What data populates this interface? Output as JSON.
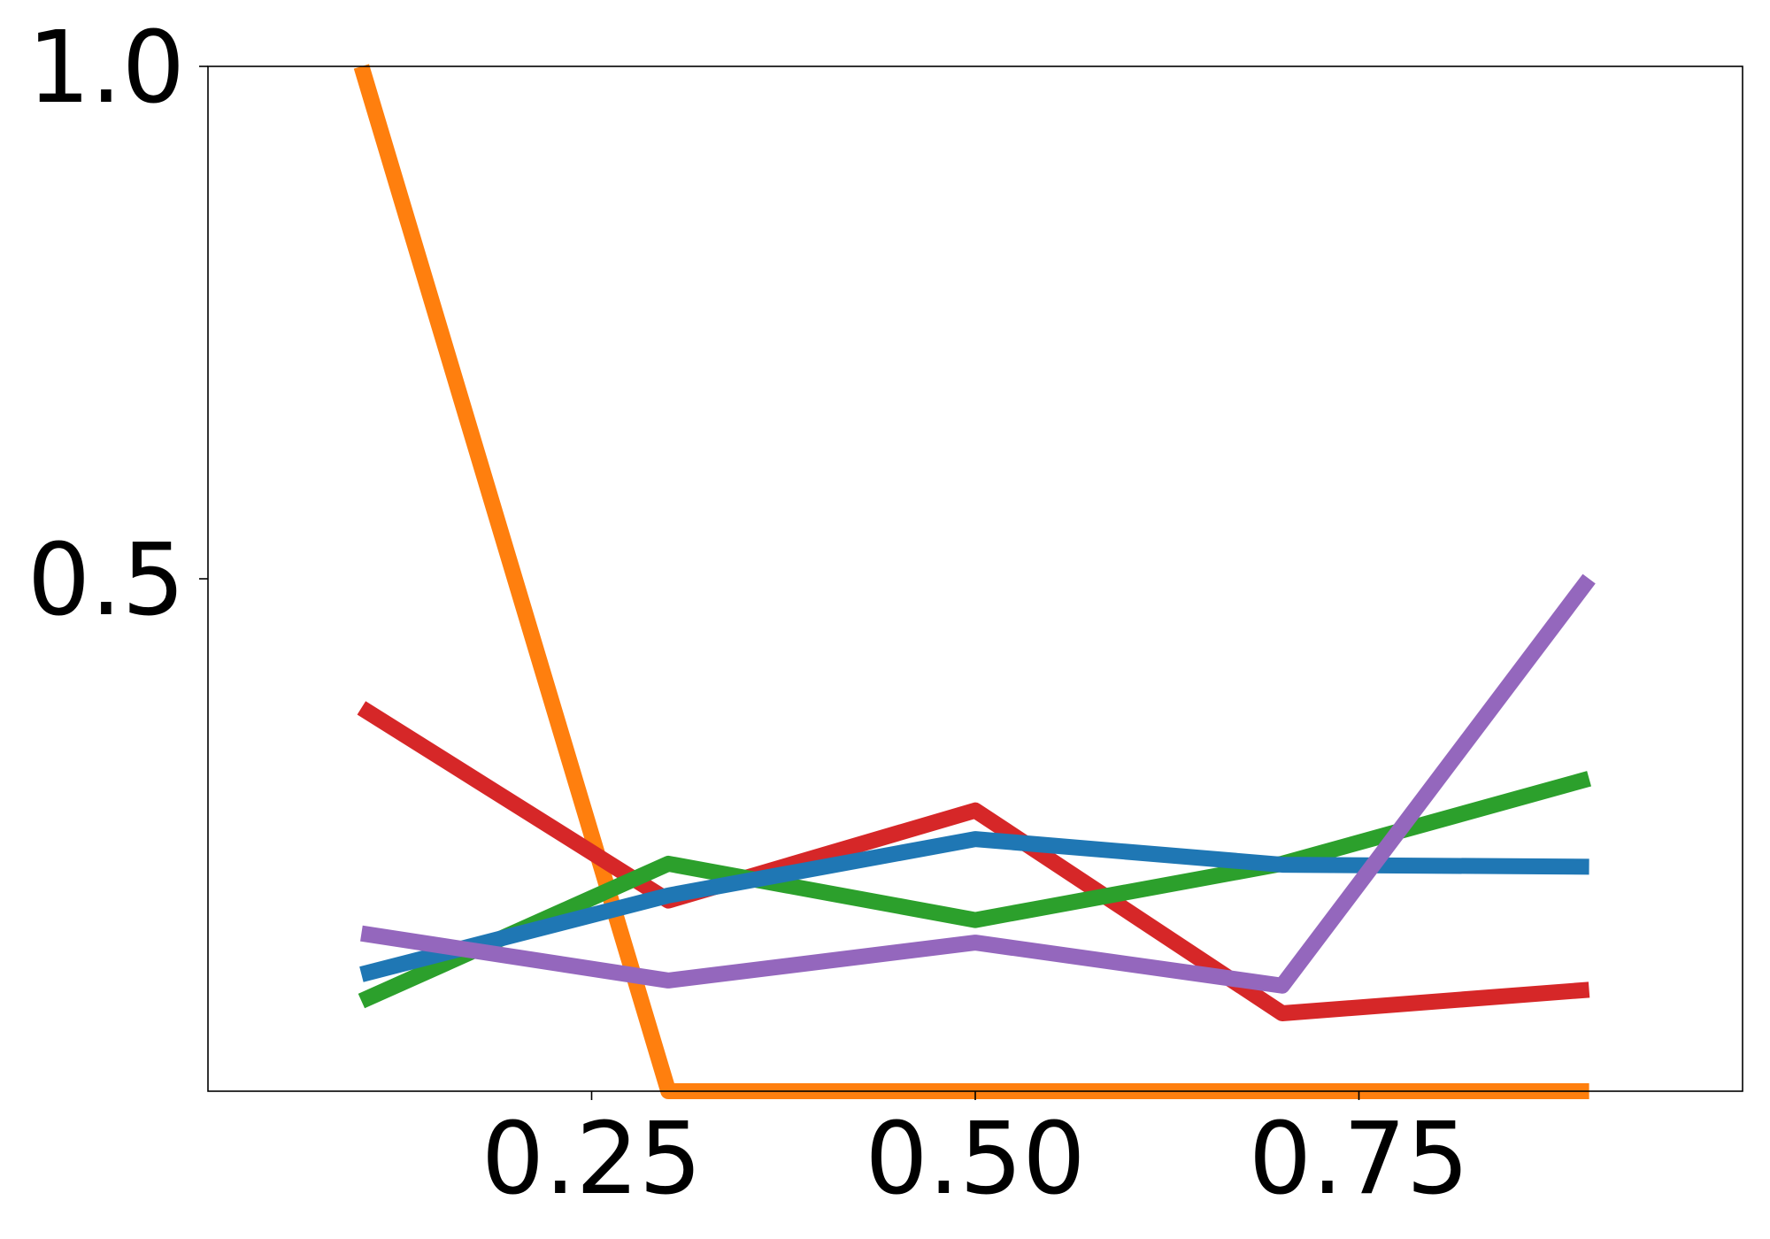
{
  "chart_data": {
    "type": "line",
    "x": [
      0.1,
      0.3,
      0.5,
      0.7,
      0.9
    ],
    "series": [
      {
        "color": "#ff7f0e",
        "values": [
          1.0,
          0.0,
          0.0,
          0.0,
          0.0
        ]
      },
      {
        "color": "#d62728",
        "values": [
          0.374,
          0.186,
          0.274,
          0.076,
          0.099
        ]
      },
      {
        "color": "#2ca02c",
        "values": [
          0.088,
          0.222,
          0.167,
          0.222,
          0.305
        ]
      },
      {
        "color": "#1f77b4",
        "values": [
          0.114,
          0.191,
          0.246,
          0.221,
          0.219
        ]
      },
      {
        "color": "#9467bd",
        "values": [
          0.154,
          0.108,
          0.145,
          0.103,
          0.5
        ]
      }
    ],
    "xlim": [
      0,
      1
    ],
    "ylim": [
      0,
      1
    ],
    "xticks": [
      0.25,
      {
        "value": 0.5,
        "label": "0.50"
      },
      0.75
    ],
    "yticks": [
      0.5,
      {
        "value": 1,
        "label": "1.0"
      }
    ],
    "grid": false
  }
}
